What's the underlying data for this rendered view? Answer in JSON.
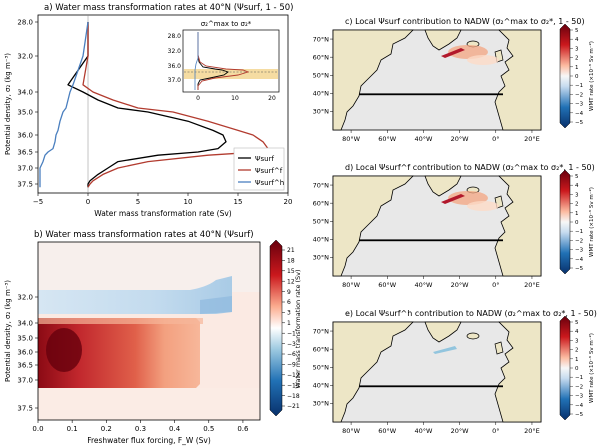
{
  "colors": {
    "psi_surf": "#000000",
    "psi_surf_f": "#b23b2f",
    "psi_surf_h": "#4a7fbf",
    "land": "#ede6c6",
    "ocean": "#e8e8e8",
    "nadw_shade": "#f2d38b",
    "cmap_neg_end": "#08306b",
    "cmap_pos_end": "#67000d"
  },
  "panels": {
    "a": {
      "title": "a) Water mass transformation rates at 40°N (Ψsurf, 1 - 50)",
      "xlabel": "Water mass transformation rate (Sv)",
      "ylabel": "Potential density, σ₂ (kg m⁻³)",
      "xticks": [
        "−5",
        "0",
        "5",
        "10",
        "15",
        "20"
      ],
      "yticks": [
        "28.0",
        "32.0",
        "34.0",
        "35.0",
        "36.0",
        "36.5",
        "37.0",
        "37.5"
      ],
      "legend": [
        "Ψsurf",
        "Ψsurf^f",
        "Ψsurf^h"
      ],
      "inset": {
        "title": "σ₂^max to σ₂*",
        "xticks": [
          "0",
          "10",
          "20"
        ],
        "yticks": [
          "28.0",
          "32.0",
          "36.0",
          "37.0"
        ]
      }
    },
    "b": {
      "title": "b) Water mass transformation rates at 40°N (Ψsurf)",
      "xlabel": "Freshwater flux forcing, F_W (Sv)",
      "ylabel": "Potential density, σ₂ (kg m⁻³)",
      "xticks": [
        "0.0",
        "0.1",
        "0.2",
        "0.3",
        "0.4",
        "0.5",
        "0.6"
      ],
      "yticks": [
        "32.0",
        "34.0",
        "35.0",
        "36.0",
        "36.5",
        "37.0",
        "37.5"
      ],
      "colorbar_label": "Water mass transformation rate (Sv)",
      "colorbar_ticks": [
        "21",
        "18",
        "15",
        "12",
        "9",
        "6",
        "3",
        "1",
        "−1",
        "−3",
        "−6",
        "−9",
        "−12",
        "−15",
        "−18",
        "−21"
      ]
    },
    "maps": [
      {
        "title": "c) Local Ψsurf contribution to NADW (σ₂^max to σ₂*, 1 - 50)"
      },
      {
        "title": "d) Local Ψsurf^f contribution to NADW (σ₂^max to σ₂*, 1 - 50)"
      },
      {
        "title": "e) Local Ψsurf^h contribution to NADW (σ₂^max to σ₂*, 1 - 50)"
      }
    ],
    "map_axes": {
      "lon_ticks": [
        "80°W",
        "60°W",
        "40°W",
        "20°W",
        "0°",
        "20°E"
      ],
      "lat_ticks": [
        "70°N",
        "60°N",
        "50°N",
        "40°N",
        "30°N"
      ],
      "colorbar_label": "WMT rate (×10⁻⁶ Sv m⁻²)",
      "colorbar_ticks": [
        "5",
        "4",
        "3",
        "2",
        "1",
        "0",
        "−1",
        "−2",
        "−3",
        "−4",
        "−5"
      ]
    }
  },
  "chart_data": [
    {
      "type": "line",
      "title": "a) Water mass transformation rates at 40°N (Ψsurf, 1 - 50)",
      "xlabel": "Water mass transformation rate (Sv)",
      "ylabel": "Potential density, σ₂ (kg m⁻³)",
      "xlim": [
        -5,
        20
      ],
      "ylim": [
        28.0,
        37.7
      ],
      "y_scale": "nonlinear (categorical tick spacing)",
      "y": [
        28.0,
        32.0,
        33.6,
        34.0,
        34.4,
        34.8,
        35.0,
        35.4,
        35.8,
        36.0,
        36.2,
        36.4,
        36.5,
        36.6,
        36.8,
        37.0,
        37.2,
        37.4,
        37.5,
        37.7
      ],
      "series": [
        {
          "name": "Ψsurf",
          "values": [
            0.0,
            0.0,
            -2.0,
            -0.5,
            1.0,
            3.0,
            6.0,
            10.0,
            12.5,
            13.5,
            13.8,
            13.0,
            11.0,
            7.0,
            3.0,
            2.0,
            1.0,
            0.2,
            0.0,
            0.0
          ]
        },
        {
          "name": "Ψsurf^f",
          "values": [
            0.0,
            0.0,
            -0.5,
            0.5,
            2.5,
            5.0,
            8.5,
            12.0,
            15.0,
            16.5,
            17.5,
            18.0,
            17.0,
            12.0,
            6.0,
            3.0,
            1.5,
            0.5,
            0.2,
            0.0
          ]
        },
        {
          "name": "Ψsurf^h",
          "values": [
            0.0,
            -0.5,
            -1.5,
            -1.8,
            -2.0,
            -2.2,
            -2.5,
            -2.8,
            -3.0,
            -3.2,
            -3.3,
            -3.5,
            -4.0,
            -4.3,
            -4.5,
            -4.8,
            -4.8,
            -4.8,
            -4.8,
            -4.8
          ]
        }
      ],
      "legend_position": "lower-right",
      "grid": false
    },
    {
      "type": "heatmap",
      "title": "b) Water mass transformation rates at 40°N (Ψsurf)",
      "xlabel": "Freshwater flux forcing, F_W (Sv)",
      "ylabel": "Potential density, σ₂ (kg m⁻³)",
      "xlim": [
        0.0,
        0.65
      ],
      "colorbar": {
        "label": "Water mass transformation rate (Sv)",
        "range": [
          -21,
          21
        ]
      }
    },
    {
      "type": "heatmap",
      "title": "c) Local Ψsurf contribution to NADW (σ₂^max to σ₂*, 1 - 50)",
      "colorbar": {
        "label": "WMT rate (×10⁻⁶ Sv m⁻²)",
        "range": [
          -5,
          5
        ]
      }
    },
    {
      "type": "heatmap",
      "title": "d) Local Ψsurf^f contribution to NADW (σ₂^max to σ₂*, 1 - 50)",
      "colorbar": {
        "label": "WMT rate (×10⁻⁶ Sv m⁻²)",
        "range": [
          -5,
          5
        ]
      }
    },
    {
      "type": "heatmap",
      "title": "e) Local Ψsurf^h contribution to NADW (σ₂^max to σ₂*, 1 - 50)",
      "colorbar": {
        "label": "WMT rate (×10⁻⁶ Sv m⁻²)",
        "range": [
          -5,
          5
        ]
      }
    }
  ]
}
